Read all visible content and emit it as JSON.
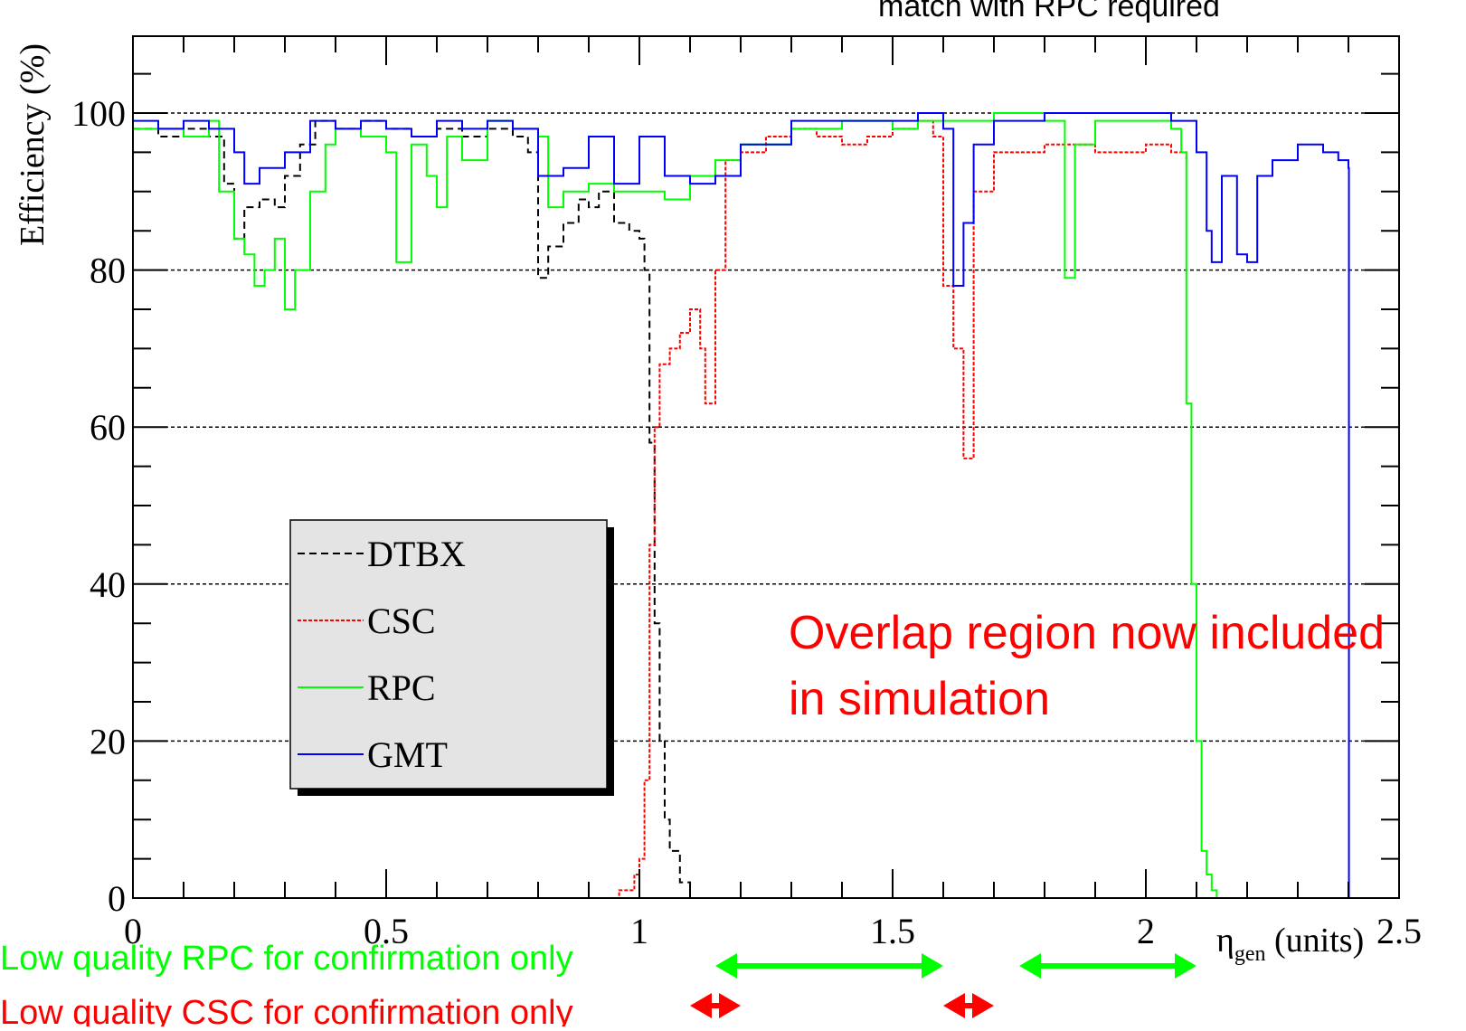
{
  "chart_data": {
    "type": "line",
    "title": "match with RPC required",
    "xlabel": "η",
    "xlabel_sub": "gen",
    "xlabel_unit": " (units)",
    "ylabel": "Efficiency (%)",
    "xlim": [
      0,
      2.5
    ],
    "ylim": [
      0,
      100
    ],
    "grid": "horizontal dashed",
    "x_ticks": [
      "0",
      "0.5",
      "1",
      "1.5",
      "2",
      "2.5"
    ],
    "x_tick_values": [
      0,
      0.5,
      1,
      1.5,
      2,
      2.5
    ],
    "y_ticks": [
      "0",
      "20",
      "40",
      "60",
      "80",
      "100"
    ],
    "y_tick_values": [
      0,
      20,
      40,
      60,
      80,
      100
    ],
    "legend_position": "lower-left",
    "series": [
      {
        "name": "DTBX",
        "color": "#000000",
        "style": "dashed",
        "x": [
          0,
          0.05,
          0.1,
          0.15,
          0.18,
          0.2,
          0.22,
          0.25,
          0.28,
          0.3,
          0.33,
          0.36,
          0.4,
          0.45,
          0.5,
          0.55,
          0.6,
          0.65,
          0.7,
          0.75,
          0.78,
          0.8,
          0.82,
          0.85,
          0.88,
          0.9,
          0.92,
          0.95,
          0.98,
          1.0,
          1.01,
          1.02,
          1.03,
          1.04,
          1.05,
          1.06,
          1.08,
          1.1,
          1.15,
          2.4
        ],
        "y": [
          98,
          97,
          98,
          97,
          91,
          84,
          88,
          89,
          88,
          92,
          96,
          99,
          98,
          99,
          98,
          97,
          98,
          97,
          98,
          97,
          95,
          79,
          83,
          86,
          89,
          88,
          90,
          86,
          85,
          84,
          80,
          58,
          35,
          20,
          10,
          6,
          2,
          0,
          0,
          0
        ]
      },
      {
        "name": "CSC",
        "color": "#ff0000",
        "style": "dotted",
        "x": [
          0,
          0.9,
          0.96,
          0.99,
          1.0,
          1.01,
          1.02,
          1.03,
          1.04,
          1.06,
          1.08,
          1.1,
          1.12,
          1.13,
          1.15,
          1.17,
          1.2,
          1.25,
          1.3,
          1.35,
          1.4,
          1.45,
          1.5,
          1.55,
          1.58,
          1.6,
          1.62,
          1.64,
          1.66,
          1.7,
          1.8,
          1.9,
          2.0,
          2.05,
          2.08
        ],
        "y": [
          0,
          0,
          1,
          3,
          5,
          15,
          45,
          60,
          68,
          70,
          72,
          75,
          70,
          63,
          80,
          94,
          95,
          97,
          98,
          97,
          96,
          97,
          98,
          99,
          97,
          78,
          70,
          56,
          90,
          95,
          96,
          95,
          96,
          95,
          94
        ]
      },
      {
        "name": "RPC",
        "color": "#00ff00",
        "style": "solid",
        "x": [
          0,
          0.05,
          0.1,
          0.15,
          0.17,
          0.2,
          0.22,
          0.24,
          0.26,
          0.28,
          0.3,
          0.32,
          0.35,
          0.38,
          0.4,
          0.45,
          0.5,
          0.52,
          0.55,
          0.58,
          0.6,
          0.62,
          0.65,
          0.7,
          0.75,
          0.8,
          0.82,
          0.85,
          0.9,
          0.95,
          1.0,
          1.05,
          1.1,
          1.15,
          1.2,
          1.3,
          1.4,
          1.5,
          1.55,
          1.6,
          1.65,
          1.7,
          1.8,
          1.84,
          1.86,
          1.9,
          2.0,
          2.05,
          2.07,
          2.08,
          2.09,
          2.1,
          2.11,
          2.12,
          2.13,
          2.14,
          2.15,
          2.4
        ],
        "y": [
          98,
          98,
          97,
          99,
          90,
          84,
          82,
          78,
          80,
          84,
          75,
          80,
          90,
          96,
          98,
          97,
          95,
          81,
          96,
          92,
          88,
          97,
          94,
          99,
          98,
          97,
          88,
          90,
          91,
          90,
          90,
          89,
          92,
          94,
          96,
          98,
          99,
          98,
          99,
          99,
          99,
          100,
          99,
          79,
          96,
          99,
          99,
          98,
          95,
          63,
          40,
          20,
          6,
          3,
          1,
          0,
          0,
          0
        ]
      },
      {
        "name": "GMT",
        "color": "#0000ff",
        "style": "solid",
        "x": [
          0,
          0.05,
          0.1,
          0.15,
          0.2,
          0.22,
          0.25,
          0.3,
          0.35,
          0.4,
          0.45,
          0.5,
          0.55,
          0.6,
          0.65,
          0.7,
          0.75,
          0.8,
          0.85,
          0.9,
          0.95,
          1.0,
          1.05,
          1.1,
          1.15,
          1.2,
          1.3,
          1.4,
          1.5,
          1.55,
          1.6,
          1.62,
          1.64,
          1.66,
          1.7,
          1.8,
          1.9,
          2.0,
          2.05,
          2.08,
          2.1,
          2.12,
          2.13,
          2.15,
          2.18,
          2.2,
          2.22,
          2.25,
          2.3,
          2.35,
          2.38,
          2.4,
          2.401,
          2.5
        ],
        "y": [
          99,
          98,
          99,
          98,
          95,
          91,
          93,
          95,
          99,
          98,
          99,
          98,
          97,
          99,
          98,
          99,
          98,
          92,
          93,
          97,
          91,
          97,
          92,
          91,
          92,
          96,
          99,
          99,
          99,
          100,
          98,
          78,
          86,
          96,
          99,
          100,
          100,
          100,
          99,
          99,
          95,
          85,
          81,
          92,
          82,
          81,
          92,
          94,
          96,
          95,
          94,
          93,
          0,
          0
        ]
      }
    ],
    "annotations": [
      {
        "text": "Overlap region now included",
        "color": "#ff0000",
        "x": 1.3,
        "y": 33
      },
      {
        "text": "in simulation",
        "color": "#ff0000",
        "x": 1.3,
        "y": 25
      },
      {
        "text": "Low quality RPC for confirmation only",
        "color": "#00ff00"
      },
      {
        "text": "Low quality CSC for confirmation only",
        "color": "#ff0000"
      }
    ],
    "range_markers": [
      {
        "color": "#00ff00",
        "x0": 1.15,
        "x1": 1.6
      },
      {
        "color": "#00ff00",
        "x0": 1.75,
        "x1": 2.1
      },
      {
        "color": "#ff0000",
        "x0": 1.1,
        "x1": 1.2
      },
      {
        "color": "#ff0000",
        "x0": 1.6,
        "x1": 1.7
      }
    ]
  }
}
